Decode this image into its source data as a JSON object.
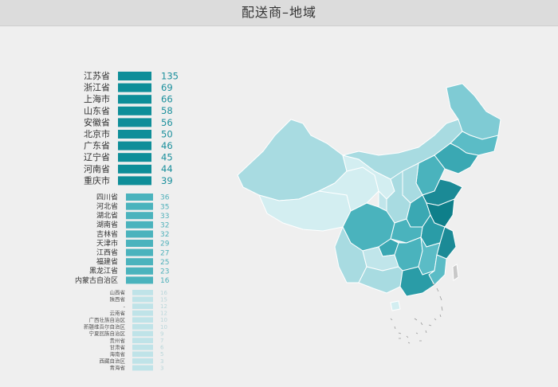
{
  "header": {
    "title": "配送商–地域"
  },
  "colors": {
    "tier1_bar": "#0e8e99",
    "tier2_bar": "#4ab3bd",
    "tier3_bar": "#bfe3e8",
    "tier1_text": "#1a8f9c",
    "tier2_text": "#4fb0ba",
    "tier3_text": "#b9d6da",
    "map_dark": "#1b8a96",
    "map_mid": "#5bbcc6",
    "map_light": "#a8dbe1",
    "map_pale": "#d3eef1"
  },
  "chart_data": [
    {
      "type": "bar",
      "orientation": "horizontal",
      "categories": [
        "江苏省",
        "浙江省",
        "上海市",
        "山东省",
        "安徽省",
        "北京市",
        "广东省",
        "辽宁省",
        "河南省",
        "重庆市"
      ],
      "values": [
        135,
        69,
        66,
        58,
        56,
        50,
        46,
        45,
        44,
        39
      ]
    },
    {
      "type": "bar",
      "orientation": "horizontal",
      "categories": [
        "四川省",
        "河北省",
        "湖北省",
        "湖南省",
        "吉林省",
        "天津市",
        "江西省",
        "福建省",
        "黑龙江省",
        "内蒙古自治区"
      ],
      "values": [
        36,
        35,
        33,
        32,
        32,
        29,
        27,
        25,
        23,
        16
      ]
    },
    {
      "type": "bar",
      "orientation": "horizontal",
      "categories": [
        "山西省",
        "陕西省",
        "-",
        "云南省",
        "广西壮族自治区",
        "新疆维吾尔自治区",
        "宁夏回族自治区",
        "贵州省",
        "甘肃省",
        "海南省",
        "西藏自治区",
        "青海省"
      ],
      "values": [
        16,
        15,
        12,
        12,
        10,
        10,
        9,
        7,
        6,
        5,
        3,
        3
      ]
    }
  ]
}
